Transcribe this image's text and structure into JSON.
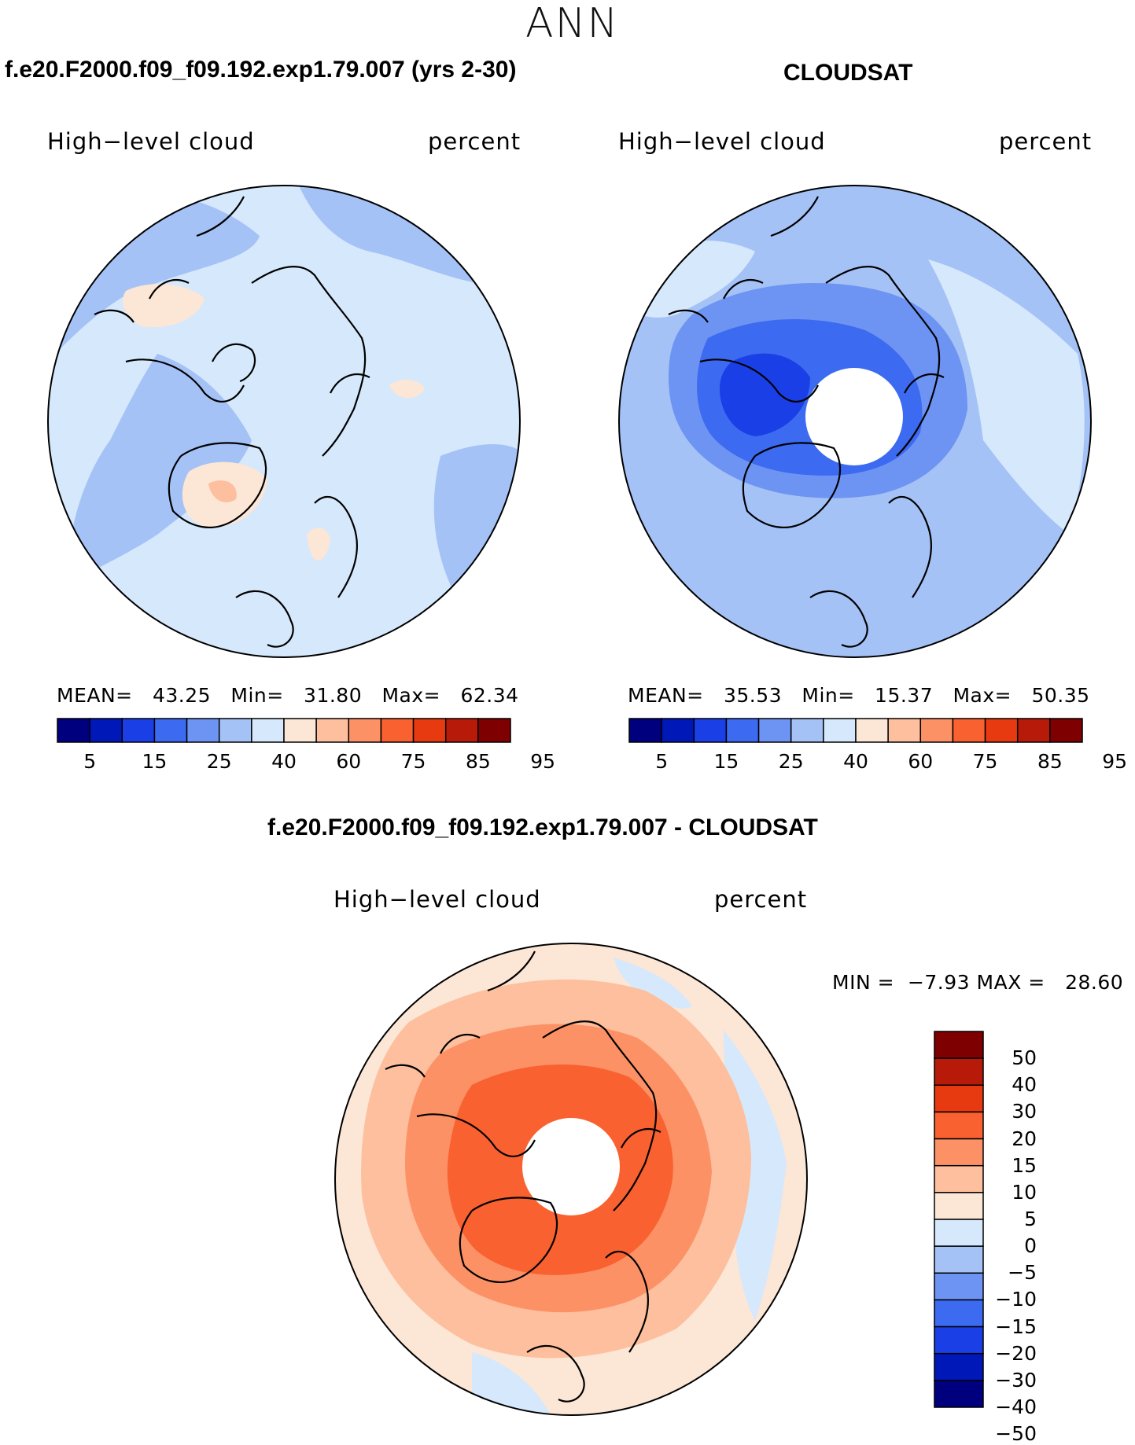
{
  "header": {
    "season": "ANN"
  },
  "panels": [
    {
      "id": "model",
      "title": "f.e20.F2000.f09_f09.192.exp1.79.007 (yrs 2-30)",
      "variable": "High−level cloud",
      "units": "percent",
      "stats": {
        "mean_label": "MEAN=",
        "mean": "43.25",
        "min_label": "Min=",
        "min": "31.80",
        "max_label": "Max=",
        "max": "62.34"
      },
      "colorbar": {
        "colors": [
          "#00007f",
          "#0018b8",
          "#1a3fe6",
          "#3c6af0",
          "#6d94f2",
          "#a5c2f7",
          "#d6e8fb",
          "#fce6d6",
          "#fdbf9d",
          "#fc9166",
          "#f96130",
          "#e83a10",
          "#b81a0a",
          "#7f0000"
        ],
        "ticks": [
          "5",
          "15",
          "25",
          "40",
          "60",
          "75",
          "85",
          "95"
        ]
      }
    },
    {
      "id": "obs",
      "title": "CLOUDSAT",
      "variable": "High−level cloud",
      "units": "percent",
      "stats": {
        "mean_label": "MEAN=",
        "mean": "35.53",
        "min_label": "Min=",
        "min": "15.37",
        "max_label": "Max=",
        "max": "50.35"
      },
      "colorbar": {
        "colors": [
          "#00007f",
          "#0018b8",
          "#1a3fe6",
          "#3c6af0",
          "#6d94f2",
          "#a5c2f7",
          "#d6e8fb",
          "#fce6d6",
          "#fdbf9d",
          "#fc9166",
          "#f96130",
          "#e83a10",
          "#b81a0a",
          "#7f0000"
        ],
        "ticks": [
          "5",
          "15",
          "25",
          "40",
          "60",
          "75",
          "85",
          "95"
        ]
      }
    }
  ],
  "difference": {
    "title": "f.e20.F2000.f09_f09.192.exp1.79.007 - CLOUDSAT",
    "variable": "High−level cloud",
    "units": "percent",
    "stats": {
      "min_label": "MIN =",
      "min": "−7.93",
      "max_label": "MAX =",
      "max": "28.60"
    },
    "colorbar": {
      "colors": [
        "#7f0000",
        "#b81a0a",
        "#e83a10",
        "#f96130",
        "#fc9166",
        "#fdbf9d",
        "#fce6d6",
        "#d6e8fb",
        "#a5c2f7",
        "#6d94f2",
        "#3c6af0",
        "#1a3fe6",
        "#0018b8",
        "#00007f"
      ],
      "ticks": [
        "50",
        "40",
        "30",
        "20",
        "15",
        "10",
        "5",
        "0",
        "−5",
        "−10",
        "−15",
        "−20",
        "−30",
        "−40",
        "−50"
      ]
    }
  },
  "map_colors": {
    "model_base": "#d6e8fb",
    "model_mid": "#a5c2f7",
    "model_warm": "#fce6d6",
    "model_warm2": "#fdbf9d",
    "obs_base": "#a5c2f7",
    "obs_light": "#d6e8fb",
    "obs_mid": "#6d94f2",
    "obs_dark": "#3c6af0",
    "obs_darker": "#1a3fe6",
    "diff_base": "#fce6d6",
    "diff_blue": "#d6e8fb",
    "diff_1": "#fdbf9d",
    "diff_2": "#fc9166",
    "diff_3": "#f96130",
    "coast": "#000000"
  }
}
